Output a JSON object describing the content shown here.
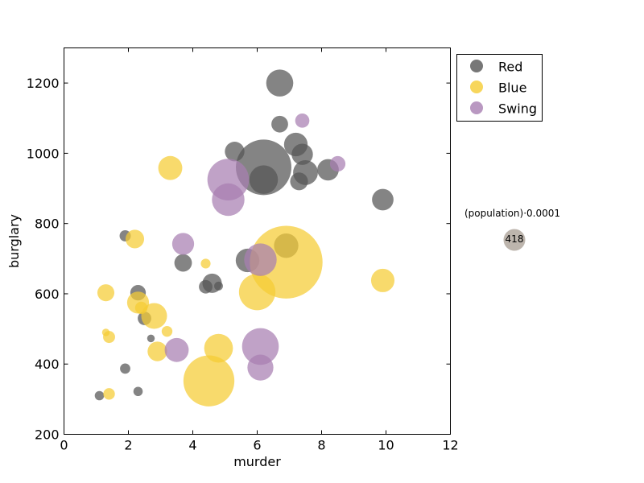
{
  "chart_data": {
    "type": "scatter",
    "xlabel": "murder",
    "ylabel": "burglary",
    "xlim": [
      0,
      12
    ],
    "ylim": [
      200,
      1300
    ],
    "xticks": [
      0,
      2,
      4,
      6,
      8,
      10,
      12
    ],
    "yticks": [
      200,
      400,
      600,
      800,
      1000,
      1200
    ],
    "grid": false,
    "legend_position": "upper-right-outside",
    "colors": {
      "Red": "#555555",
      "Blue": "#f5cc33",
      "Swing": "#a77eb1"
    },
    "legend": [
      {
        "name": "Red",
        "color": "#555555"
      },
      {
        "name": "Blue",
        "color": "#f5cc33"
      },
      {
        "name": "Swing",
        "color": "#a77eb1"
      }
    ],
    "size_key": {
      "label": "(population)·0.0001",
      "value_label": "418",
      "value": 418
    },
    "series": [
      {
        "name": "Red",
        "points": [
          {
            "x": 6.7,
            "y": 1200,
            "s": 760
          },
          {
            "x": 6.7,
            "y": 1083,
            "s": 290
          },
          {
            "x": 5.3,
            "y": 1005,
            "s": 400
          },
          {
            "x": 6.2,
            "y": 960,
            "s": 3200
          },
          {
            "x": 6.2,
            "y": 925,
            "s": 850
          },
          {
            "x": 7.2,
            "y": 1025,
            "s": 580
          },
          {
            "x": 7.4,
            "y": 997,
            "s": 470
          },
          {
            "x": 7.5,
            "y": 945,
            "s": 640
          },
          {
            "x": 7.3,
            "y": 920,
            "s": 330
          },
          {
            "x": 8.2,
            "y": 953,
            "s": 480
          },
          {
            "x": 9.9,
            "y": 868,
            "s": 480
          },
          {
            "x": 1.9,
            "y": 765,
            "s": 130
          },
          {
            "x": 3.7,
            "y": 688,
            "s": 320
          },
          {
            "x": 5.7,
            "y": 695,
            "s": 580
          },
          {
            "x": 6.9,
            "y": 737,
            "s": 620
          },
          {
            "x": 4.6,
            "y": 630,
            "s": 390
          },
          {
            "x": 4.4,
            "y": 620,
            "s": 190
          },
          {
            "x": 4.8,
            "y": 622,
            "s": 80
          },
          {
            "x": 2.3,
            "y": 603,
            "s": 250
          },
          {
            "x": 2.5,
            "y": 530,
            "s": 190
          },
          {
            "x": 2.7,
            "y": 473,
            "s": 60
          },
          {
            "x": 1.9,
            "y": 387,
            "s": 110
          },
          {
            "x": 2.3,
            "y": 322,
            "s": 90
          },
          {
            "x": 1.1,
            "y": 310,
            "s": 90
          }
        ]
      },
      {
        "name": "Blue",
        "points": [
          {
            "x": 3.3,
            "y": 958,
            "s": 600
          },
          {
            "x": 2.2,
            "y": 756,
            "s": 360
          },
          {
            "x": 6.9,
            "y": 690,
            "s": 5500
          },
          {
            "x": 4.4,
            "y": 686,
            "s": 100
          },
          {
            "x": 6.0,
            "y": 605,
            "s": 1380
          },
          {
            "x": 1.3,
            "y": 603,
            "s": 300
          },
          {
            "x": 2.3,
            "y": 575,
            "s": 500
          },
          {
            "x": 2.4,
            "y": 560,
            "s": 160
          },
          {
            "x": 2.8,
            "y": 537,
            "s": 690
          },
          {
            "x": 3.2,
            "y": 493,
            "s": 120
          },
          {
            "x": 1.3,
            "y": 490,
            "s": 60
          },
          {
            "x": 1.4,
            "y": 477,
            "s": 150
          },
          {
            "x": 4.8,
            "y": 445,
            "s": 860
          },
          {
            "x": 2.9,
            "y": 436,
            "s": 400
          },
          {
            "x": 9.9,
            "y": 638,
            "s": 570
          },
          {
            "x": 4.5,
            "y": 352,
            "s": 2700
          },
          {
            "x": 1.4,
            "y": 315,
            "s": 140
          }
        ]
      },
      {
        "name": "Swing",
        "points": [
          {
            "x": 7.4,
            "y": 1093,
            "s": 210
          },
          {
            "x": 8.5,
            "y": 970,
            "s": 250
          },
          {
            "x": 5.1,
            "y": 925,
            "s": 1800
          },
          {
            "x": 5.1,
            "y": 868,
            "s": 1100
          },
          {
            "x": 3.7,
            "y": 742,
            "s": 500
          },
          {
            "x": 6.1,
            "y": 697,
            "s": 1100
          },
          {
            "x": 6.1,
            "y": 450,
            "s": 1400
          },
          {
            "x": 6.1,
            "y": 390,
            "s": 700
          },
          {
            "x": 3.5,
            "y": 440,
            "s": 600
          }
        ]
      }
    ]
  }
}
